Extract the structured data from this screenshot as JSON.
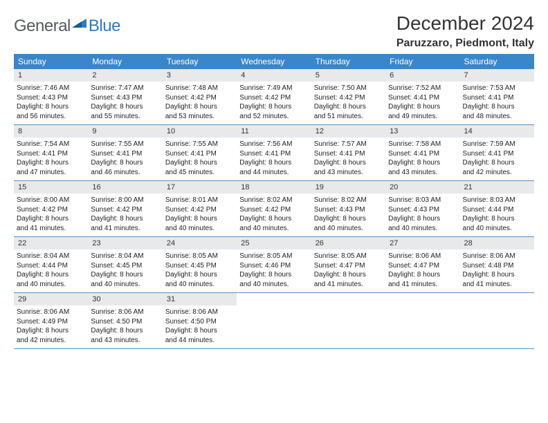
{
  "logo": {
    "text_a": "General",
    "text_b": "Blue"
  },
  "title": "December 2024",
  "location": "Paruzzaro, Piedmont, Italy",
  "colors": {
    "header_bg": "#3a86c8",
    "header_text": "#ffffff",
    "daynum_bg": "#e8e9ea",
    "week_border": "#5a8fbe",
    "logo_gray": "#555a5f",
    "logo_blue": "#2f7bbf",
    "background": "#ffffff"
  },
  "typography": {
    "title_fontsize": 28,
    "location_fontsize": 16,
    "day_header_fontsize": 12,
    "day_num_fontsize": 11,
    "body_fontsize": 10
  },
  "day_names": [
    "Sunday",
    "Monday",
    "Tuesday",
    "Wednesday",
    "Thursday",
    "Friday",
    "Saturday"
  ],
  "weeks": [
    [
      {
        "n": "1",
        "sr": "Sunrise: 7:46 AM",
        "ss": "Sunset: 4:43 PM",
        "d1": "Daylight: 8 hours",
        "d2": "and 56 minutes."
      },
      {
        "n": "2",
        "sr": "Sunrise: 7:47 AM",
        "ss": "Sunset: 4:43 PM",
        "d1": "Daylight: 8 hours",
        "d2": "and 55 minutes."
      },
      {
        "n": "3",
        "sr": "Sunrise: 7:48 AM",
        "ss": "Sunset: 4:42 PM",
        "d1": "Daylight: 8 hours",
        "d2": "and 53 minutes."
      },
      {
        "n": "4",
        "sr": "Sunrise: 7:49 AM",
        "ss": "Sunset: 4:42 PM",
        "d1": "Daylight: 8 hours",
        "d2": "and 52 minutes."
      },
      {
        "n": "5",
        "sr": "Sunrise: 7:50 AM",
        "ss": "Sunset: 4:42 PM",
        "d1": "Daylight: 8 hours",
        "d2": "and 51 minutes."
      },
      {
        "n": "6",
        "sr": "Sunrise: 7:52 AM",
        "ss": "Sunset: 4:41 PM",
        "d1": "Daylight: 8 hours",
        "d2": "and 49 minutes."
      },
      {
        "n": "7",
        "sr": "Sunrise: 7:53 AM",
        "ss": "Sunset: 4:41 PM",
        "d1": "Daylight: 8 hours",
        "d2": "and 48 minutes."
      }
    ],
    [
      {
        "n": "8",
        "sr": "Sunrise: 7:54 AM",
        "ss": "Sunset: 4:41 PM",
        "d1": "Daylight: 8 hours",
        "d2": "and 47 minutes."
      },
      {
        "n": "9",
        "sr": "Sunrise: 7:55 AM",
        "ss": "Sunset: 4:41 PM",
        "d1": "Daylight: 8 hours",
        "d2": "and 46 minutes."
      },
      {
        "n": "10",
        "sr": "Sunrise: 7:55 AM",
        "ss": "Sunset: 4:41 PM",
        "d1": "Daylight: 8 hours",
        "d2": "and 45 minutes."
      },
      {
        "n": "11",
        "sr": "Sunrise: 7:56 AM",
        "ss": "Sunset: 4:41 PM",
        "d1": "Daylight: 8 hours",
        "d2": "and 44 minutes."
      },
      {
        "n": "12",
        "sr": "Sunrise: 7:57 AM",
        "ss": "Sunset: 4:41 PM",
        "d1": "Daylight: 8 hours",
        "d2": "and 43 minutes."
      },
      {
        "n": "13",
        "sr": "Sunrise: 7:58 AM",
        "ss": "Sunset: 4:41 PM",
        "d1": "Daylight: 8 hours",
        "d2": "and 43 minutes."
      },
      {
        "n": "14",
        "sr": "Sunrise: 7:59 AM",
        "ss": "Sunset: 4:41 PM",
        "d1": "Daylight: 8 hours",
        "d2": "and 42 minutes."
      }
    ],
    [
      {
        "n": "15",
        "sr": "Sunrise: 8:00 AM",
        "ss": "Sunset: 4:42 PM",
        "d1": "Daylight: 8 hours",
        "d2": "and 41 minutes."
      },
      {
        "n": "16",
        "sr": "Sunrise: 8:00 AM",
        "ss": "Sunset: 4:42 PM",
        "d1": "Daylight: 8 hours",
        "d2": "and 41 minutes."
      },
      {
        "n": "17",
        "sr": "Sunrise: 8:01 AM",
        "ss": "Sunset: 4:42 PM",
        "d1": "Daylight: 8 hours",
        "d2": "and 40 minutes."
      },
      {
        "n": "18",
        "sr": "Sunrise: 8:02 AM",
        "ss": "Sunset: 4:42 PM",
        "d1": "Daylight: 8 hours",
        "d2": "and 40 minutes."
      },
      {
        "n": "19",
        "sr": "Sunrise: 8:02 AM",
        "ss": "Sunset: 4:43 PM",
        "d1": "Daylight: 8 hours",
        "d2": "and 40 minutes."
      },
      {
        "n": "20",
        "sr": "Sunrise: 8:03 AM",
        "ss": "Sunset: 4:43 PM",
        "d1": "Daylight: 8 hours",
        "d2": "and 40 minutes."
      },
      {
        "n": "21",
        "sr": "Sunrise: 8:03 AM",
        "ss": "Sunset: 4:44 PM",
        "d1": "Daylight: 8 hours",
        "d2": "and 40 minutes."
      }
    ],
    [
      {
        "n": "22",
        "sr": "Sunrise: 8:04 AM",
        "ss": "Sunset: 4:44 PM",
        "d1": "Daylight: 8 hours",
        "d2": "and 40 minutes."
      },
      {
        "n": "23",
        "sr": "Sunrise: 8:04 AM",
        "ss": "Sunset: 4:45 PM",
        "d1": "Daylight: 8 hours",
        "d2": "and 40 minutes."
      },
      {
        "n": "24",
        "sr": "Sunrise: 8:05 AM",
        "ss": "Sunset: 4:45 PM",
        "d1": "Daylight: 8 hours",
        "d2": "and 40 minutes."
      },
      {
        "n": "25",
        "sr": "Sunrise: 8:05 AM",
        "ss": "Sunset: 4:46 PM",
        "d1": "Daylight: 8 hours",
        "d2": "and 40 minutes."
      },
      {
        "n": "26",
        "sr": "Sunrise: 8:05 AM",
        "ss": "Sunset: 4:47 PM",
        "d1": "Daylight: 8 hours",
        "d2": "and 41 minutes."
      },
      {
        "n": "27",
        "sr": "Sunrise: 8:06 AM",
        "ss": "Sunset: 4:47 PM",
        "d1": "Daylight: 8 hours",
        "d2": "and 41 minutes."
      },
      {
        "n": "28",
        "sr": "Sunrise: 8:06 AM",
        "ss": "Sunset: 4:48 PM",
        "d1": "Daylight: 8 hours",
        "d2": "and 41 minutes."
      }
    ],
    [
      {
        "n": "29",
        "sr": "Sunrise: 8:06 AM",
        "ss": "Sunset: 4:49 PM",
        "d1": "Daylight: 8 hours",
        "d2": "and 42 minutes."
      },
      {
        "n": "30",
        "sr": "Sunrise: 8:06 AM",
        "ss": "Sunset: 4:50 PM",
        "d1": "Daylight: 8 hours",
        "d2": "and 43 minutes."
      },
      {
        "n": "31",
        "sr": "Sunrise: 8:06 AM",
        "ss": "Sunset: 4:50 PM",
        "d1": "Daylight: 8 hours",
        "d2": "and 44 minutes."
      },
      null,
      null,
      null,
      null
    ]
  ]
}
